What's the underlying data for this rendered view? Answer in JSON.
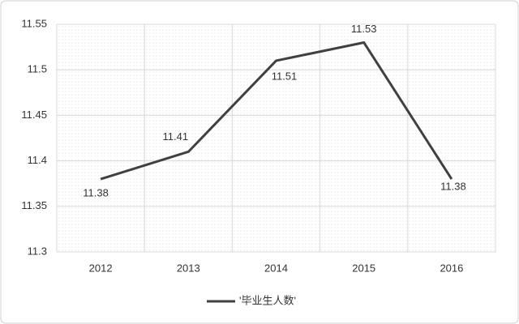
{
  "chart_data": {
    "type": "line",
    "categories": [
      "2012",
      "2013",
      "2014",
      "2015",
      "2016"
    ],
    "series": [
      {
        "name": "'毕业生人数'",
        "color": "#404040",
        "values": [
          11.38,
          11.41,
          11.51,
          11.53,
          11.38
        ]
      }
    ],
    "ylim": [
      11.3,
      11.55
    ],
    "yticks": [
      11.3,
      11.35,
      11.4,
      11.45,
      11.5,
      11.55
    ],
    "grid": true,
    "legend": "bottom"
  }
}
